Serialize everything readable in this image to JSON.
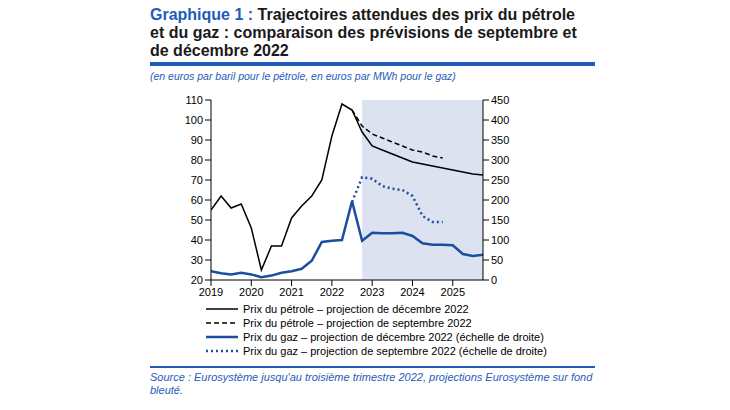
{
  "chart_data": {
    "type": "line",
    "title": "Graphique 1 : Trajectoires attendues des prix du pétrole et du gaz : comparaison des prévisions de septembre et de décembre 2022",
    "subtitle": "(en euros par baril pour le pétrole, en euros par MWh pour le gaz)",
    "source": "Source : Eurosystème jusqu'au troisième trimestre 2022, projections Eurosystème sur fond bleuté.",
    "x": [
      2019,
      2019.25,
      2019.5,
      2019.75,
      2020,
      2020.25,
      2020.5,
      2020.75,
      2021,
      2021.25,
      2021.5,
      2021.75,
      2022,
      2022.25,
      2022.5,
      2022.75,
      2023,
      2023.25,
      2023.5,
      2023.75,
      2024,
      2024.25,
      2024.5,
      2024.75,
      2025,
      2025.25,
      2025.5,
      2025.75
    ],
    "xlim": [
      2019,
      2025.75
    ],
    "xticks": [
      2019,
      2020,
      2021,
      2022,
      2023,
      2024,
      2025
    ],
    "ylim": [
      20,
      110
    ],
    "yticks": [
      20,
      30,
      40,
      50,
      60,
      70,
      80,
      90,
      100,
      110
    ],
    "y2lim": [
      0,
      450
    ],
    "y2ticks": [
      0,
      50,
      100,
      150,
      200,
      250,
      300,
      350,
      400,
      450
    ],
    "shaded_x": [
      2022.75,
      2025.75
    ],
    "grid": false,
    "legend": "bottom",
    "series": [
      {
        "name": "Prix du pétrole – projection de décembre 2022",
        "color": "#000000",
        "line_style": "solid",
        "values": [
          55,
          62,
          56,
          58,
          46,
          25,
          37,
          37,
          51,
          57,
          62,
          70,
          92,
          108,
          105,
          94,
          87,
          85,
          83,
          81,
          79,
          78,
          77,
          76,
          75,
          74,
          73,
          72.5
        ]
      },
      {
        "name": "Prix du pétrole – projection de septembre 2022",
        "color": "#000000",
        "line_style": "dashed",
        "values": [
          null,
          null,
          null,
          null,
          null,
          null,
          null,
          null,
          null,
          null,
          null,
          null,
          null,
          null,
          105,
          97,
          93,
          91,
          89,
          87,
          85,
          84,
          82,
          81,
          null,
          null,
          null,
          null
        ]
      },
      {
        "name": "Prix du gaz – projection de décembre 2022 (échelle de droite)",
        "color": "#1a4fa0",
        "line_style": "solid",
        "axis": "y2",
        "values": [
          22,
          17,
          14,
          18,
          14,
          7,
          11,
          18,
          22,
          28,
          48,
          95,
          98,
          100,
          197,
          98,
          118,
          117,
          117,
          118,
          110,
          92,
          88,
          88,
          87,
          65,
          60,
          63
        ]
      },
      {
        "name": "Prix du gaz – projection de septembre 2022 (échelle de droite)",
        "color": "#1a4fa0",
        "line_style": "dotted",
        "axis": "y2",
        "values": [
          null,
          null,
          null,
          null,
          null,
          null,
          null,
          null,
          null,
          null,
          null,
          null,
          null,
          null,
          195,
          257,
          253,
          235,
          228,
          225,
          210,
          160,
          145,
          145,
          null,
          null,
          null,
          null
        ]
      }
    ]
  }
}
